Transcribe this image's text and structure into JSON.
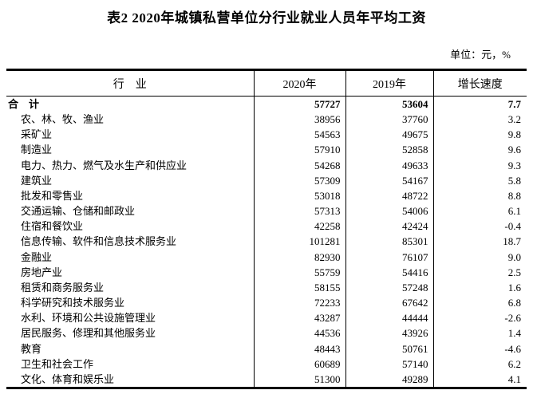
{
  "title": "表2  2020年城镇私营单位分行业就业人员年平均工资",
  "unit_label": "单位：元，%",
  "colors": {
    "text": "#000000",
    "border": "#000000",
    "background": "#ffffff"
  },
  "table": {
    "headers": {
      "industry": "行　业",
      "y2020": "2020年",
      "y2019": "2019年",
      "growth": "增长速度"
    },
    "rows": [
      {
        "industry": "合　计",
        "y2020": "57727",
        "y2019": "53604",
        "growth": "7.7",
        "total": true
      },
      {
        "industry": "农、林、牧、渔业",
        "y2020": "38956",
        "y2019": "37760",
        "growth": "3.2",
        "total": false
      },
      {
        "industry": "采矿业",
        "y2020": "54563",
        "y2019": "49675",
        "growth": "9.8",
        "total": false
      },
      {
        "industry": "制造业",
        "y2020": "57910",
        "y2019": "52858",
        "growth": "9.6",
        "total": false
      },
      {
        "industry": "电力、热力、燃气及水生产和供应业",
        "y2020": "54268",
        "y2019": "49633",
        "growth": "9.3",
        "total": false
      },
      {
        "industry": "建筑业",
        "y2020": "57309",
        "y2019": "54167",
        "growth": "5.8",
        "total": false
      },
      {
        "industry": "批发和零售业",
        "y2020": "53018",
        "y2019": "48722",
        "growth": "8.8",
        "total": false
      },
      {
        "industry": "交通运输、仓储和邮政业",
        "y2020": "57313",
        "y2019": "54006",
        "growth": "6.1",
        "total": false
      },
      {
        "industry": "住宿和餐饮业",
        "y2020": "42258",
        "y2019": "42424",
        "growth": "-0.4",
        "total": false
      },
      {
        "industry": "信息传输、软件和信息技术服务业",
        "y2020": "101281",
        "y2019": "85301",
        "growth": "18.7",
        "total": false
      },
      {
        "industry": "金融业",
        "y2020": "82930",
        "y2019": "76107",
        "growth": "9.0",
        "total": false
      },
      {
        "industry": "房地产业",
        "y2020": "55759",
        "y2019": "54416",
        "growth": "2.5",
        "total": false
      },
      {
        "industry": "租赁和商务服务业",
        "y2020": "58155",
        "y2019": "57248",
        "growth": "1.6",
        "total": false
      },
      {
        "industry": "科学研究和技术服务业",
        "y2020": "72233",
        "y2019": "67642",
        "growth": "6.8",
        "total": false
      },
      {
        "industry": "水利、环境和公共设施管理业",
        "y2020": "43287",
        "y2019": "44444",
        "growth": "-2.6",
        "total": false
      },
      {
        "industry": "居民服务、修理和其他服务业",
        "y2020": "44536",
        "y2019": "43926",
        "growth": "1.4",
        "total": false
      },
      {
        "industry": "教育",
        "y2020": "48443",
        "y2019": "50761",
        "growth": "-4.6",
        "total": false
      },
      {
        "industry": "卫生和社会工作",
        "y2020": "60689",
        "y2019": "57140",
        "growth": "6.2",
        "total": false
      },
      {
        "industry": "文化、体育和娱乐业",
        "y2020": "51300",
        "y2019": "49289",
        "growth": "4.1",
        "total": false
      }
    ]
  }
}
